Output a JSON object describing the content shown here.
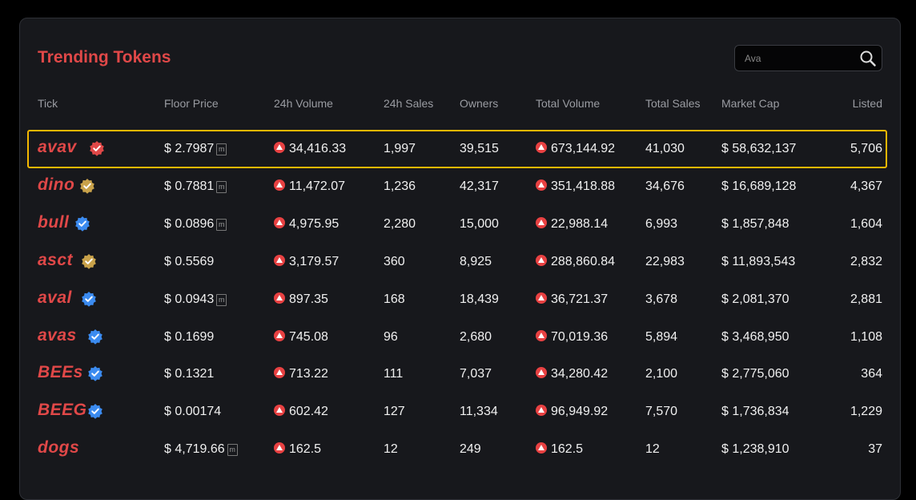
{
  "header": {
    "title": "Trending Tokens"
  },
  "search": {
    "placeholder": "Ava",
    "icon": "search-icon"
  },
  "columns": {
    "tick": "Tick",
    "floor_price": "Floor Price",
    "vol_24h": "24h Volume",
    "sales_24h": "24h Sales",
    "owners": "Owners",
    "total_volume": "Total Volume",
    "total_sales": "Total Sales",
    "market_cap": "Market Cap",
    "listed": "Listed"
  },
  "colors": {
    "accent": "#e04848",
    "highlight": "#f5b800",
    "verified_blue": "#3b8bf0",
    "verified_gold": "#c9a24a",
    "verified_red": "#e04848"
  },
  "rows": [
    {
      "tick": "avav",
      "badge": "red",
      "floor": "$ 2.7987",
      "m": true,
      "vol24": "34,416.33",
      "sales24": "1,997",
      "owners": "39,515",
      "totalvol": "673,144.92",
      "totalsales": "41,030",
      "mcap": "$ 58,632,137",
      "listed": "5,706",
      "selected": true
    },
    {
      "tick": "dino",
      "badge": "gold",
      "floor": "$ 0.7881",
      "m": true,
      "vol24": "11,472.07",
      "sales24": "1,236",
      "owners": "42,317",
      "totalvol": "351,418.88",
      "totalsales": "34,676",
      "mcap": "$ 16,689,128",
      "listed": "4,367"
    },
    {
      "tick": "bull",
      "badge": "blue",
      "floor": "$ 0.0896",
      "m": true,
      "vol24": "4,975.95",
      "sales24": "2,280",
      "owners": "15,000",
      "totalvol": "22,988.14",
      "totalsales": "6,993",
      "mcap": "$ 1,857,848",
      "listed": "1,604"
    },
    {
      "tick": "asct",
      "badge": "gold",
      "floor": "$ 0.5569",
      "m": false,
      "vol24": "3,179.57",
      "sales24": "360",
      "owners": "8,925",
      "totalvol": "288,860.84",
      "totalsales": "22,983",
      "mcap": "$ 11,893,543",
      "listed": "2,832"
    },
    {
      "tick": "aval",
      "badge": "blue",
      "floor": "$ 0.0943",
      "m": true,
      "vol24": "897.35",
      "sales24": "168",
      "owners": "18,439",
      "totalvol": "36,721.37",
      "totalsales": "3,678",
      "mcap": "$ 2,081,370",
      "listed": "2,881"
    },
    {
      "tick": "avas",
      "badge": "blue",
      "floor": "$ 0.1699",
      "m": false,
      "vol24": "745.08",
      "sales24": "96",
      "owners": "2,680",
      "totalvol": "70,019.36",
      "totalsales": "5,894",
      "mcap": "$ 3,468,950",
      "listed": "1,108"
    },
    {
      "tick": "BEEs",
      "badge": "blue",
      "floor": "$ 0.1321",
      "m": false,
      "vol24": "713.22",
      "sales24": "111",
      "owners": "7,037",
      "totalvol": "34,280.42",
      "totalsales": "2,100",
      "mcap": "$ 2,775,060",
      "listed": "364"
    },
    {
      "tick": "BEEG",
      "badge": "blue",
      "floor": "$ 0.00174",
      "m": false,
      "vol24": "602.42",
      "sales24": "127",
      "owners": "11,334",
      "totalvol": "96,949.92",
      "totalsales": "7,570",
      "mcap": "$ 1,736,834",
      "listed": "1,229"
    },
    {
      "tick": "dogs",
      "badge": "none",
      "floor": "$ 4,719.66",
      "m": true,
      "vol24": "162.5",
      "sales24": "12",
      "owners": "249",
      "totalvol": "162.5",
      "totalsales": "12",
      "mcap": "$ 1,238,910",
      "listed": "37"
    }
  ]
}
